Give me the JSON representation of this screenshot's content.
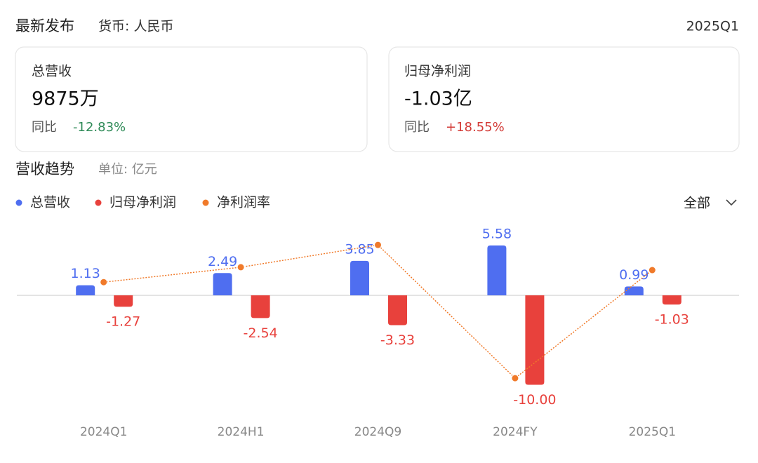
{
  "header": {
    "title": "最新发布",
    "currency": "货币: 人民币",
    "period": "2025Q1"
  },
  "cards": [
    {
      "title": "总营收",
      "value": "9875万",
      "change_label": "同比",
      "change": "-12.83%"
    },
    {
      "title": "归母净利润",
      "value": "-1.03亿",
      "change_label": "同比",
      "change": "+18.55%"
    }
  ],
  "chart_section": {
    "title": "营收趋势",
    "unit": "单位: 亿元",
    "filter": "全部"
  },
  "chart_data": {
    "type": "bar",
    "categories": [
      "2024Q1",
      "2024H1",
      "2024Q9",
      "2024FY",
      "2025Q1"
    ],
    "series": [
      {
        "name": "总营收",
        "color": "#4f6ef0",
        "values": [
          1.13,
          2.49,
          3.85,
          5.58,
          0.99
        ]
      },
      {
        "name": "归母净利润",
        "color": "#e8413c",
        "values": [
          -1.27,
          -2.54,
          -3.33,
          -10,
          -1.03
        ],
        "value_labels": [
          "-1.27",
          "-2.54",
          "-3.33",
          "-10.00",
          "-1.03"
        ]
      },
      {
        "name": "净利润率",
        "color": "#f07a2a",
        "type": "line",
        "axis": "y2",
        "values": [
          -112.4,
          -102.0,
          -86.5,
          -179.2,
          -104.0
        ]
      }
    ],
    "ylim": [
      -11,
      7
    ],
    "y2lim": [
      -190,
      -78
    ]
  }
}
